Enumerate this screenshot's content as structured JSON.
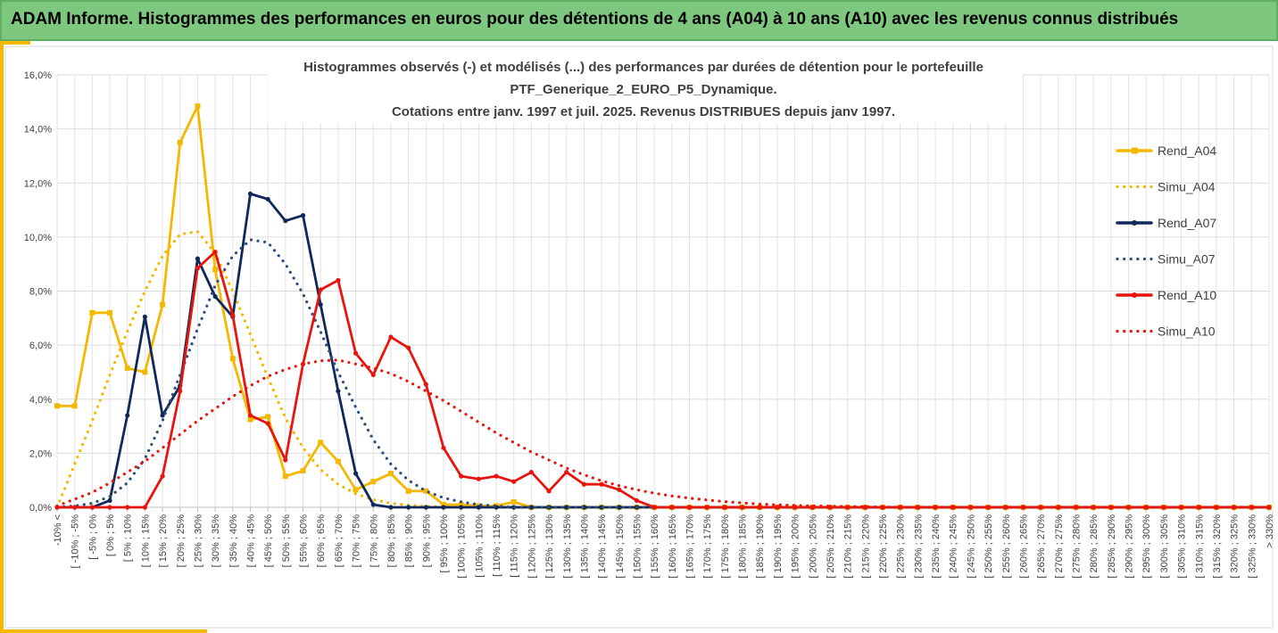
{
  "header": {
    "title": "ADAM Informe. Histogrammes des performances en euros pour des détentions de 4 ans (A04) à 10 ans (A10) avec les revenus connus distribués",
    "background": "#7dc77f",
    "accent": "#f5b800"
  },
  "chart_data": {
    "type": "line",
    "title_lines": [
      "Histogrammes observés (-) et modélisés (...) des performances par durées de détention pour le portefeuille",
      "PTF_Generique_2_EURO_P5_Dynamique.",
      "Cotations entre janv. 1997 et juil. 2025. Revenus DISTRIBUES depuis janv 1997."
    ],
    "ylim": [
      0,
      16
    ],
    "yticks": [
      "0,0%",
      "2,0%",
      "4,0%",
      "6,0%",
      "8,0%",
      "10,0%",
      "12,0%",
      "14,0%",
      "16,0%"
    ],
    "grid": true,
    "legend_position": "right",
    "categories": [
      "-10% <",
      "[ -10% ; -5%",
      "[ -5% ; 0%",
      "[ 0% ; 5%",
      "[ 5% ; 10%",
      "[ 10% ; 15%",
      "[ 15% ; 20%",
      "[ 20% ; 25%",
      "[ 25% ; 30%",
      "[ 30% ; 35%",
      "[ 35% ; 40%",
      "[ 40% ; 45%",
      "[ 45% ; 50%",
      "[ 50% ; 55%",
      "[ 55% ; 60%",
      "[ 60% ; 65%",
      "[ 65% ; 70%",
      "[ 70% ; 75%",
      "[ 75% ; 80%",
      "[ 80% ; 85%",
      "[ 85% ; 90%",
      "[ 90% ; 95%",
      "[ 95% ; 100%",
      "[ 100% ; 105%",
      "[ 105% ; 110%",
      "[ 110% ; 115%",
      "[ 115% ; 120%",
      "[ 120% ; 125%",
      "[ 125% ; 130%",
      "[ 130% ; 135%",
      "[ 135% ; 140%",
      "[ 140% ; 145%",
      "[ 145% ; 150%",
      "[ 150% ; 155%",
      "[ 155% ; 160%",
      "[ 160% ; 165%",
      "[ 165% ; 170%",
      "[ 170% ; 175%",
      "[ 175% ; 180%",
      "[ 180% ; 185%",
      "[ 185% ; 190%",
      "[ 190% ; 195%",
      "[ 195% ; 200%",
      "[ 200% ; 205%",
      "[ 205% ; 210%",
      "[ 210% ; 215%",
      "[ 215% ; 220%",
      "[ 220% ; 225%",
      "[ 225% ; 230%",
      "[ 230% ; 235%",
      "[ 235% ; 240%",
      "[ 240% ; 245%",
      "[ 245% ; 250%",
      "[ 250% ; 255%",
      "[ 255% ; 260%",
      "[ 260% ; 265%",
      "[ 265% ; 270%",
      "[ 270% ; 275%",
      "[ 275% ; 280%",
      "[ 280% ; 285%",
      "[ 285% ; 290%",
      "[ 290% ; 295%",
      "[ 295% ; 300%",
      "[ 300% ; 305%",
      "[ 305% ; 310%",
      "[ 310% ; 315%",
      "[ 315% ; 320%",
      "[ 320% ; 325%",
      "[ 325% ; 330%",
      "> 330%"
    ],
    "series": [
      {
        "name": "Rend_A04",
        "color": "#f5b800",
        "style": "solid",
        "marker": "square",
        "values": [
          3.75,
          3.75,
          7.2,
          7.2,
          5.15,
          5.0,
          7.5,
          13.5,
          14.85,
          8.8,
          5.5,
          3.25,
          3.35,
          1.15,
          1.35,
          2.4,
          1.7,
          0.65,
          0.95,
          1.25,
          0.6,
          0.6,
          0.1,
          0.1,
          0.05,
          0.05,
          0.2,
          0.0,
          0.0,
          0.0,
          0.0,
          0.0,
          0.0,
          0.0,
          0.0,
          0.0,
          0.0,
          0.0,
          0.0,
          0.0,
          0.0,
          0.0,
          0.0,
          0.0,
          0.0,
          0.0,
          0.0,
          0.0,
          0.0,
          0.0,
          0.0,
          0.0,
          0.0,
          0.0,
          0.0,
          0.0,
          0.0,
          0.0,
          0.0,
          0.0,
          0.0,
          0.0,
          0.0,
          0.0,
          0.0,
          0.0,
          0.0,
          0.0,
          0.0,
          0.0
        ]
      },
      {
        "name": "Simu_A04",
        "color": "#f5b800",
        "style": "dotted",
        "marker": "none",
        "values": [
          0.0,
          1.6,
          3.2,
          4.9,
          6.5,
          8.0,
          9.3,
          10.1,
          10.2,
          9.4,
          8.0,
          6.4,
          4.8,
          3.3,
          2.2,
          1.4,
          0.85,
          0.5,
          0.28,
          0.15,
          0.08,
          0.04,
          0.02,
          0.01,
          0.0,
          0.0,
          0.0,
          0.0,
          0.0,
          0.0,
          0.0,
          0.0,
          0.0,
          0.0,
          0.0,
          0.0,
          0.0,
          0.0,
          0.0,
          0.0,
          0.0,
          0.0,
          0.0,
          0.0,
          0.0,
          0.0,
          0.0,
          0.0,
          0.0,
          0.0,
          0.0,
          0.0,
          0.0,
          0.0,
          0.0,
          0.0,
          0.0,
          0.0,
          0.0,
          0.0,
          0.0,
          0.0,
          0.0,
          0.0,
          0.0,
          0.0,
          0.0,
          0.0,
          0.0,
          0.0
        ]
      },
      {
        "name": "Rend_A07",
        "color": "#10285a",
        "style": "solid",
        "marker": "circle",
        "values": [
          0.0,
          0.0,
          0.0,
          0.25,
          3.4,
          7.05,
          3.4,
          4.5,
          9.2,
          7.8,
          7.05,
          11.6,
          11.4,
          10.6,
          10.8,
          7.5,
          4.3,
          1.25,
          0.1,
          0.0,
          0.0,
          0.0,
          0.0,
          0.0,
          0.0,
          0.0,
          0.0,
          0.0,
          0.0,
          0.0,
          0.0,
          0.0,
          0.0,
          0.0,
          0.0,
          0.0,
          0.0,
          0.0,
          0.0,
          0.0,
          0.0,
          0.0,
          0.0,
          0.0,
          0.0,
          0.0,
          0.0,
          0.0,
          0.0,
          0.0,
          0.0,
          0.0,
          0.0,
          0.0,
          0.0,
          0.0,
          0.0,
          0.0,
          0.0,
          0.0,
          0.0,
          0.0,
          0.0,
          0.0,
          0.0,
          0.0,
          0.0,
          0.0,
          0.0,
          0.0
        ]
      },
      {
        "name": "Simu_A07",
        "color": "#2f4f7a",
        "style": "dotted",
        "marker": "none",
        "values": [
          0.0,
          0.05,
          0.15,
          0.4,
          0.9,
          1.8,
          3.2,
          4.9,
          6.6,
          8.2,
          9.3,
          9.9,
          9.8,
          9.0,
          7.9,
          6.5,
          5.0,
          3.7,
          2.5,
          1.6,
          1.0,
          0.6,
          0.35,
          0.2,
          0.1,
          0.05,
          0.0,
          0.0,
          0.0,
          0.0,
          0.0,
          0.0,
          0.0,
          0.0,
          0.0,
          0.0,
          0.0,
          0.0,
          0.0,
          0.0,
          0.0,
          0.0,
          0.0,
          0.0,
          0.0,
          0.0,
          0.0,
          0.0,
          0.0,
          0.0,
          0.0,
          0.0,
          0.0,
          0.0,
          0.0,
          0.0,
          0.0,
          0.0,
          0.0,
          0.0,
          0.0,
          0.0,
          0.0,
          0.0,
          0.0,
          0.0,
          0.0,
          0.0,
          0.0,
          0.0
        ]
      },
      {
        "name": "Rend_A10",
        "color": "#e8150e",
        "style": "solid",
        "marker": "circle",
        "values": [
          0.0,
          0.0,
          0.0,
          0.0,
          0.0,
          0.0,
          1.15,
          4.3,
          8.85,
          9.45,
          7.1,
          3.4,
          3.1,
          1.75,
          5.3,
          8.05,
          8.4,
          5.7,
          4.9,
          6.3,
          5.9,
          4.55,
          2.2,
          1.15,
          1.05,
          1.15,
          0.95,
          1.3,
          0.6,
          1.3,
          0.85,
          0.85,
          0.65,
          0.25,
          0.0,
          0.0,
          0.0,
          0.0,
          0.0,
          0.0,
          0.0,
          0.0,
          0.0,
          0.0,
          0.0,
          0.0,
          0.0,
          0.0,
          0.0,
          0.0,
          0.0,
          0.0,
          0.0,
          0.0,
          0.0,
          0.0,
          0.0,
          0.0,
          0.0,
          0.0,
          0.0,
          0.0,
          0.0,
          0.0,
          0.0,
          0.0,
          0.0,
          0.0,
          0.0,
          0.0
        ]
      },
      {
        "name": "Simu_A10",
        "color": "#e8150e",
        "style": "dotted",
        "marker": "none",
        "values": [
          0.05,
          0.3,
          0.55,
          0.9,
          1.3,
          1.7,
          2.2,
          2.7,
          3.2,
          3.65,
          4.1,
          4.5,
          4.85,
          5.1,
          5.3,
          5.42,
          5.45,
          5.3,
          5.15,
          4.95,
          4.65,
          4.3,
          3.95,
          3.55,
          3.15,
          2.75,
          2.4,
          2.05,
          1.75,
          1.45,
          1.2,
          0.98,
          0.8,
          0.65,
          0.52,
          0.42,
          0.34,
          0.27,
          0.21,
          0.16,
          0.12,
          0.09,
          0.07,
          0.05,
          0.04,
          0.03,
          0.02,
          0.01,
          0.0,
          0.0,
          0.0,
          0.0,
          0.0,
          0.0,
          0.0,
          0.0,
          0.0,
          0.0,
          0.0,
          0.0,
          0.0,
          0.0,
          0.0,
          0.0,
          0.0,
          0.0,
          0.0,
          0.0,
          0.0,
          0.0
        ]
      }
    ]
  }
}
